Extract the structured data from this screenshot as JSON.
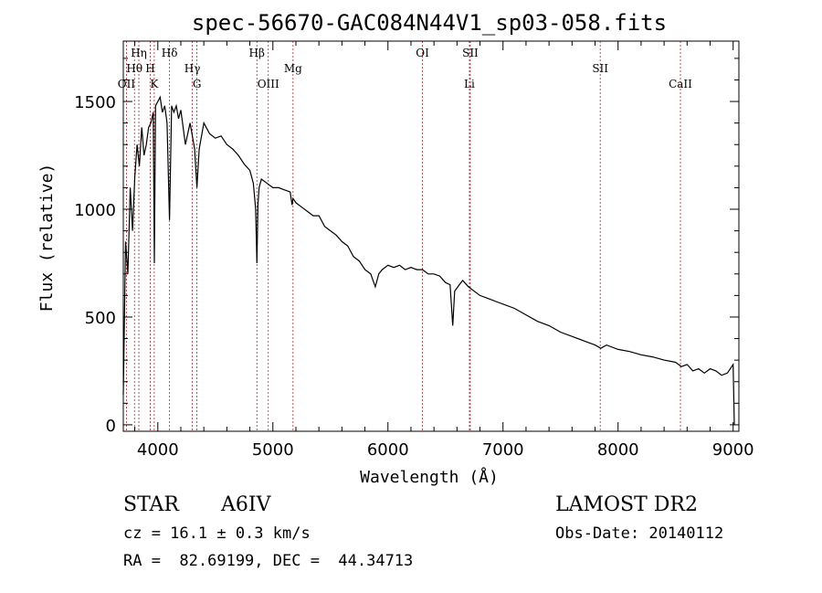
{
  "chart_data": {
    "type": "line",
    "title": "spec-56670-GAC084N44V1_sp03-058.fits",
    "xlabel": "Wavelength (Å)",
    "ylabel": "Flux (relative)",
    "xlim": [
      3700,
      9050
    ],
    "ylim": [
      -30,
      1780
    ],
    "xticks": [
      4000,
      5000,
      6000,
      7000,
      8000,
      9000
    ],
    "yticks": [
      0,
      500,
      1000,
      1500
    ],
    "grid": false,
    "series": [
      {
        "x": [
          3700,
          3720,
          3740,
          3760,
          3780,
          3800,
          3820,
          3840,
          3860,
          3880,
          3900,
          3920,
          3940,
          3960,
          3970,
          3980,
          4000,
          4020,
          4040,
          4060,
          4080,
          4102,
          4120,
          4140,
          4160,
          4180,
          4200,
          4240,
          4280,
          4320,
          4340,
          4360,
          4400,
          4450,
          4500,
          4550,
          4600,
          4650,
          4700,
          4750,
          4800,
          4830,
          4850,
          4861,
          4870,
          4880,
          4900,
          4950,
          5000,
          5050,
          5100,
          5150,
          5167,
          5175,
          5200,
          5250,
          5300,
          5350,
          5400,
          5450,
          5500,
          5550,
          5600,
          5650,
          5700,
          5750,
          5800,
          5850,
          5890,
          5920,
          5950,
          6000,
          6050,
          6100,
          6150,
          6200,
          6250,
          6300,
          6350,
          6400,
          6450,
          6500,
          6540,
          6563,
          6580,
          6620,
          6650,
          6700,
          6750,
          6800,
          6850,
          6900,
          6950,
          7000,
          7100,
          7200,
          7300,
          7400,
          7500,
          7600,
          7700,
          7800,
          7850,
          7900,
          8000,
          8100,
          8200,
          8300,
          8400,
          8500,
          8550,
          8600,
          8650,
          8700,
          8750,
          8800,
          8850,
          8900,
          8950,
          9000,
          9010
        ],
        "y": [
          140,
          850,
          700,
          1100,
          900,
          1150,
          1300,
          1200,
          1380,
          1250,
          1300,
          1380,
          1400,
          1450,
          750,
          1480,
          1500,
          1520,
          1450,
          1480,
          1400,
          950,
          1480,
          1450,
          1480,
          1420,
          1460,
          1300,
          1400,
          1280,
          1100,
          1280,
          1400,
          1350,
          1330,
          1340,
          1300,
          1280,
          1250,
          1210,
          1180,
          1120,
          1000,
          750,
          1020,
          1100,
          1140,
          1120,
          1100,
          1100,
          1090,
          1080,
          1020,
          1050,
          1030,
          1010,
          990,
          970,
          970,
          920,
          900,
          880,
          850,
          830,
          780,
          760,
          720,
          700,
          640,
          700,
          720,
          740,
          730,
          740,
          720,
          730,
          720,
          720,
          700,
          700,
          690,
          660,
          650,
          460,
          620,
          650,
          670,
          640,
          620,
          600,
          590,
          580,
          570,
          560,
          540,
          510,
          480,
          460,
          430,
          410,
          390,
          370,
          355,
          370,
          350,
          340,
          325,
          315,
          300,
          290,
          270,
          280,
          250,
          260,
          240,
          260,
          250,
          230,
          240,
          280,
          0
        ]
      }
    ],
    "emission_lines": [
      {
        "label": "OII",
        "x": 3727,
        "row": 3
      },
      {
        "label": "Hθ",
        "x": 3797,
        "row": 2
      },
      {
        "label": "Hη",
        "x": 3835,
        "row": 1
      },
      {
        "label": "H",
        "x": 3934,
        "row": 2
      },
      {
        "label": "K",
        "x": 3969,
        "row": 3
      },
      {
        "label": "Hδ",
        "x": 4102,
        "row": 1
      },
      {
        "label": "Hγ",
        "x": 4300,
        "row": 2
      },
      {
        "label": "G",
        "x": 4340,
        "row": 3
      },
      {
        "label": "Hβ",
        "x": 4861,
        "row": 1
      },
      {
        "label": "OIII",
        "x": 4960,
        "row": 3
      },
      {
        "label": "Mg",
        "x": 5175,
        "row": 2
      },
      {
        "label": "OI",
        "x": 6300,
        "row": 1
      },
      {
        "label": "SII",
        "x": 6716,
        "row": 1
      },
      {
        "label": "Li",
        "x": 6708,
        "row": 3
      },
      {
        "label": "SII",
        "x": 7845,
        "row": 2
      },
      {
        "label": "CaII",
        "x": 8542,
        "row": 3
      }
    ]
  },
  "info": {
    "object_class": "STAR",
    "subclass": "A6IV",
    "survey": "LAMOST DR2",
    "redshift": "cz = 16.1 ± 0.3 km/s",
    "obs_date": "Obs-Date: 20140112",
    "coords": "RA =  82.69199, DEC =  44.34713"
  }
}
